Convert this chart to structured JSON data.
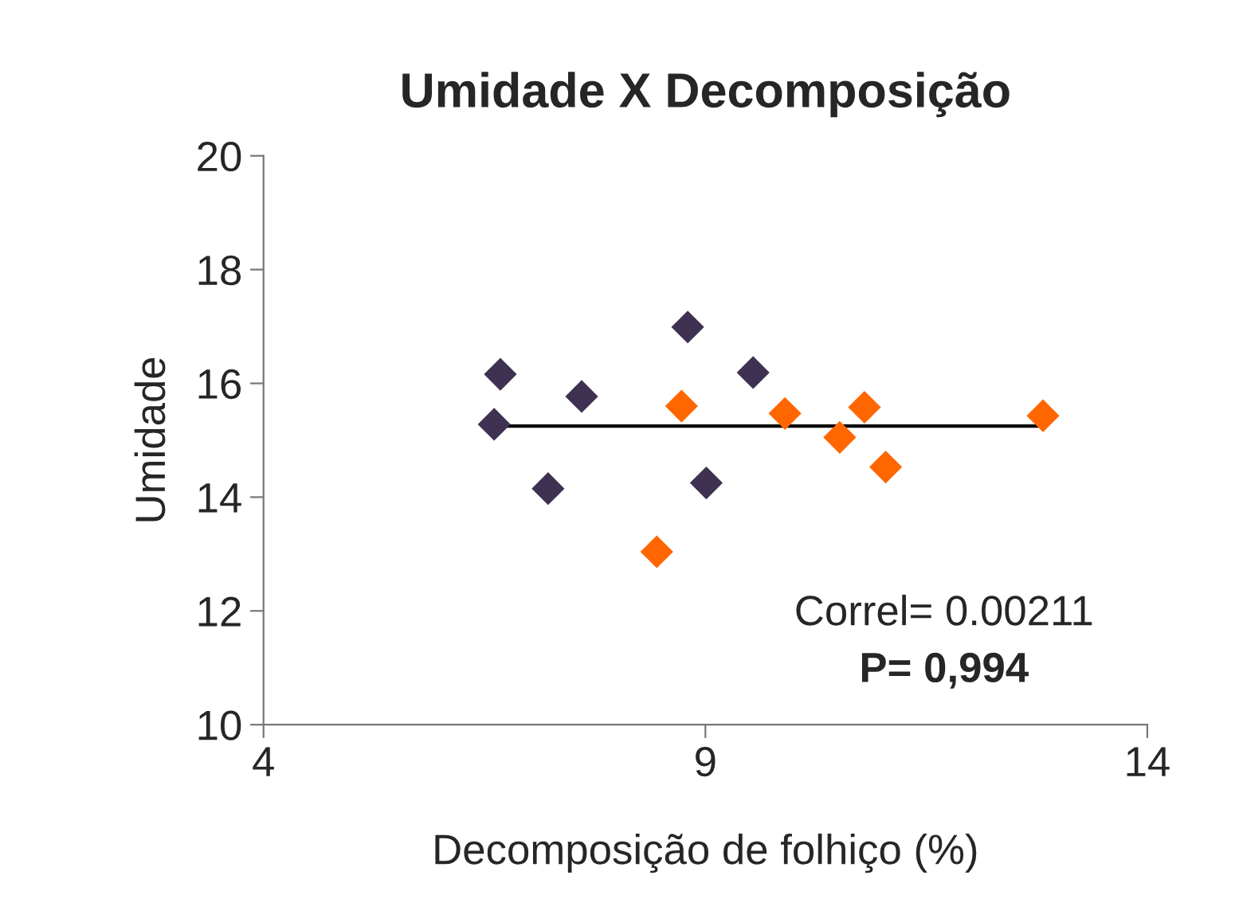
{
  "chart_data": {
    "type": "scatter",
    "title": "Umidade X Decomposição",
    "xlabel": "Decomposição de folhiço (%)",
    "ylabel": "Umidade",
    "xlim": [
      4,
      14
    ],
    "xticks": [
      4,
      9,
      14
    ],
    "ylim": [
      10,
      20
    ],
    "yticks": [
      10,
      12,
      14,
      16,
      18,
      20
    ],
    "marker": "diamond",
    "grid": false,
    "legend": false,
    "series": [
      {
        "color": "#3f3151",
        "x": [
          6.68,
          6.61,
          7.22,
          7.6,
          8.8,
          9.01,
          9.54
        ],
        "values": [
          16.16,
          15.28,
          14.15,
          15.77,
          16.99,
          14.25,
          16.19
        ]
      },
      {
        "color": "#ff6600",
        "x": [
          8.45,
          8.73,
          9.9,
          10.52,
          10.8,
          11.04,
          12.82
        ],
        "values": [
          13.04,
          15.6,
          15.47,
          15.05,
          15.58,
          14.53,
          15.43
        ]
      },
      {
        "type": "line",
        "marker": "none",
        "color": "#000000",
        "x": [
          6.61,
          12.82
        ],
        "values": [
          15.25,
          15.25
        ]
      }
    ],
    "annotations": [
      "Correl= 0.00211",
      "P= 0,994"
    ]
  }
}
